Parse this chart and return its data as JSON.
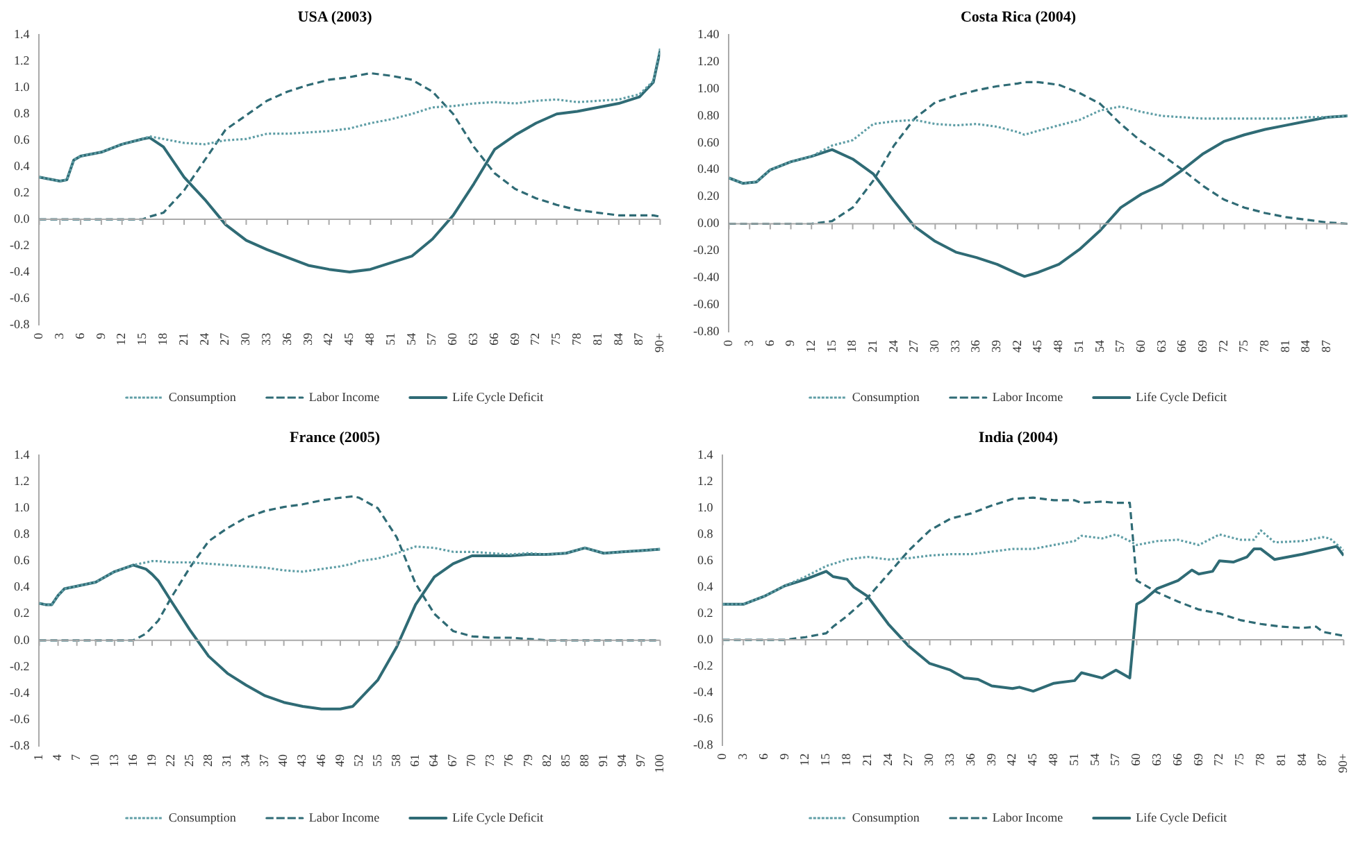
{
  "chart_data": [
    {
      "type": "line",
      "title": "USA (2003)",
      "legend": "bottom",
      "x": [
        0,
        3,
        4,
        5,
        6,
        9,
        12,
        15,
        16,
        18,
        21,
        24,
        27,
        30,
        33,
        36,
        39,
        42,
        45,
        48,
        51,
        54,
        57,
        60,
        63,
        66,
        69,
        72,
        75,
        78,
        81,
        84,
        87,
        89,
        90
      ],
      "xlim": [
        0,
        90
      ],
      "xticks": [
        0,
        3,
        6,
        9,
        12,
        15,
        18,
        21,
        24,
        27,
        30,
        33,
        36,
        39,
        42,
        45,
        48,
        51,
        54,
        57,
        60,
        63,
        66,
        69,
        72,
        75,
        78,
        81,
        84,
        87,
        {
          "value": 90,
          "label": "90+"
        }
      ],
      "ylim": [
        -0.8,
        1.4
      ],
      "yticks": [
        -0.8,
        -0.6,
        -0.4,
        -0.2,
        {
          "value": 0,
          "label": "0.0"
        },
        0.2,
        0.4,
        0.6,
        0.8,
        {
          "value": 1,
          "label": "1.0"
        },
        1.2,
        1.4
      ],
      "series": [
        {
          "name": "Consumption",
          "color": "#5f9ea6",
          "line_style": "dotted",
          "values": [
            0.32,
            0.29,
            0.3,
            0.45,
            0.48,
            0.51,
            0.57,
            0.61,
            0.63,
            0.61,
            0.58,
            0.57,
            0.6,
            0.61,
            0.65,
            0.65,
            0.66,
            0.67,
            0.69,
            0.73,
            0.76,
            0.8,
            0.85,
            0.86,
            0.88,
            0.89,
            0.88,
            0.9,
            0.91,
            0.89,
            0.9,
            0.91,
            0.95,
            1.05,
            1.3
          ]
        },
        {
          "name": "Labor Income",
          "color": "#2f6b75",
          "line_style": "dashed",
          "values": [
            0,
            0,
            0,
            0,
            0,
            0,
            0,
            0,
            0.02,
            0.05,
            0.22,
            0.45,
            0.68,
            0.79,
            0.9,
            0.97,
            1.02,
            1.06,
            1.08,
            1.11,
            1.09,
            1.06,
            0.97,
            0.8,
            0.55,
            0.35,
            0.23,
            0.16,
            0.11,
            0.07,
            0.05,
            0.03,
            0.03,
            0.03,
            0.02
          ]
        },
        {
          "name": "Life Cycle Deficit",
          "color": "#2f6b75",
          "line_style": "solid",
          "values": [
            0.32,
            0.29,
            0.3,
            0.45,
            0.48,
            0.51,
            0.57,
            0.61,
            0.62,
            0.55,
            0.32,
            0.15,
            -0.04,
            -0.16,
            -0.23,
            -0.29,
            -0.35,
            -0.38,
            -0.4,
            -0.38,
            -0.33,
            -0.28,
            -0.15,
            0.03,
            0.27,
            0.53,
            0.64,
            0.73,
            0.8,
            0.82,
            0.85,
            0.88,
            0.93,
            1.04,
            1.28
          ]
        }
      ]
    },
    {
      "type": "line",
      "title": "Costa Rica (2004)",
      "legend": "bottom",
      "x": [
        0,
        2,
        4,
        6,
        9,
        12,
        15,
        18,
        21,
        24,
        27,
        30,
        33,
        36,
        39,
        42,
        43,
        45,
        48,
        51,
        54,
        57,
        60,
        63,
        66,
        69,
        72,
        75,
        78,
        81,
        84,
        87,
        90
      ],
      "xlim": [
        0,
        90
      ],
      "xticks": [
        0,
        3,
        6,
        9,
        12,
        15,
        18,
        21,
        24,
        27,
        30,
        33,
        36,
        39,
        42,
        45,
        48,
        51,
        54,
        57,
        60,
        63,
        66,
        69,
        72,
        75,
        78,
        81,
        84,
        87
      ],
      "ylim": [
        -0.8,
        1.4
      ],
      "yticks": [
        {
          "value": -0.8,
          "label": "-0.80"
        },
        {
          "value": -0.6,
          "label": "-0.60"
        },
        {
          "value": -0.4,
          "label": "-0.40"
        },
        {
          "value": -0.2,
          "label": "-0.20"
        },
        {
          "value": 0,
          "label": "0.00"
        },
        {
          "value": 0.2,
          "label": "0.20"
        },
        {
          "value": 0.4,
          "label": "0.40"
        },
        {
          "value": 0.6,
          "label": "0.60"
        },
        {
          "value": 0.8,
          "label": "0.80"
        },
        {
          "value": 1,
          "label": "1.00"
        },
        {
          "value": 1.2,
          "label": "1.20"
        },
        {
          "value": 1.4,
          "label": "1.40"
        }
      ],
      "series": [
        {
          "name": "Consumption",
          "color": "#5f9ea6",
          "line_style": "dotted",
          "values": [
            0.34,
            0.3,
            0.31,
            0.4,
            0.46,
            0.5,
            0.58,
            0.62,
            0.74,
            0.76,
            0.77,
            0.74,
            0.73,
            0.74,
            0.72,
            0.68,
            0.66,
            0.69,
            0.73,
            0.77,
            0.84,
            0.87,
            0.83,
            0.8,
            0.79,
            0.78,
            0.78,
            0.78,
            0.78,
            0.78,
            0.79,
            0.79,
            0.8
          ]
        },
        {
          "name": "Labor Income",
          "color": "#2f6b75",
          "line_style": "dashed",
          "values": [
            0,
            0,
            0,
            0,
            0,
            0,
            0.02,
            0.12,
            0.32,
            0.58,
            0.78,
            0.9,
            0.95,
            0.99,
            1.02,
            1.04,
            1.05,
            1.05,
            1.03,
            0.97,
            0.89,
            0.74,
            0.61,
            0.51,
            0.4,
            0.28,
            0.18,
            0.12,
            0.08,
            0.05,
            0.03,
            0.01,
            0
          ]
        },
        {
          "name": "Life Cycle Deficit",
          "color": "#2f6b75",
          "line_style": "solid",
          "values": [
            0.34,
            0.3,
            0.31,
            0.4,
            0.46,
            0.5,
            0.55,
            0.48,
            0.37,
            0.17,
            -0.02,
            -0.13,
            -0.21,
            -0.25,
            -0.3,
            -0.37,
            -0.39,
            -0.36,
            -0.3,
            -0.19,
            -0.05,
            0.12,
            0.22,
            0.29,
            0.4,
            0.52,
            0.61,
            0.66,
            0.7,
            0.73,
            0.76,
            0.79,
            0.8
          ]
        }
      ]
    },
    {
      "type": "line",
      "title": "France (2005)",
      "legend": "bottom",
      "x": [
        1,
        2,
        3,
        4,
        5,
        7,
        10,
        13,
        16,
        18,
        19,
        20,
        22,
        25,
        28,
        31,
        34,
        37,
        40,
        43,
        46,
        49,
        51,
        52,
        55,
        58,
        61,
        64,
        67,
        70,
        73,
        76,
        79,
        82,
        85,
        88,
        91,
        94,
        97,
        100
      ],
      "xlim": [
        1,
        100
      ],
      "xticks": [
        1,
        4,
        7,
        10,
        13,
        16,
        19,
        22,
        25,
        28,
        31,
        34,
        37,
        40,
        43,
        46,
        49,
        52,
        55,
        58,
        61,
        64,
        67,
        70,
        73,
        76,
        79,
        82,
        85,
        88,
        91,
        94,
        97,
        100
      ],
      "ylim": [
        -0.8,
        1.4
      ],
      "yticks": [
        -0.8,
        -0.6,
        -0.4,
        -0.2,
        {
          "value": 0,
          "label": "0.0"
        },
        0.2,
        0.4,
        0.6,
        0.8,
        {
          "value": 1,
          "label": "1.0"
        },
        1.2,
        1.4
      ],
      "series": [
        {
          "name": "Consumption",
          "color": "#5f9ea6",
          "line_style": "dotted",
          "values": [
            0.28,
            0.27,
            0.27,
            0.34,
            0.39,
            0.41,
            0.44,
            0.52,
            0.57,
            0.59,
            0.6,
            0.6,
            0.59,
            0.59,
            0.58,
            0.57,
            0.56,
            0.55,
            0.53,
            0.52,
            0.54,
            0.56,
            0.58,
            0.6,
            0.62,
            0.66,
            0.71,
            0.7,
            0.67,
            0.67,
            0.66,
            0.65,
            0.66,
            0.65,
            0.66,
            0.7,
            0.66,
            0.67,
            0.68,
            0.69
          ]
        },
        {
          "name": "Labor Income",
          "color": "#2f6b75",
          "line_style": "dashed",
          "values": [
            0,
            0,
            0,
            0,
            0,
            0,
            0,
            0,
            0,
            0.05,
            0.1,
            0.15,
            0.32,
            0.55,
            0.75,
            0.85,
            0.93,
            0.98,
            1.01,
            1.03,
            1.06,
            1.08,
            1.09,
            1.08,
            1.0,
            0.78,
            0.43,
            0.2,
            0.07,
            0.03,
            0.02,
            0.02,
            0.01,
            0,
            0,
            0,
            0,
            0,
            0,
            0
          ]
        },
        {
          "name": "Life Cycle Deficit",
          "color": "#2f6b75",
          "line_style": "solid",
          "values": [
            0.28,
            0.27,
            0.27,
            0.34,
            0.39,
            0.41,
            0.44,
            0.52,
            0.57,
            0.54,
            0.5,
            0.45,
            0.3,
            0.08,
            -0.12,
            -0.25,
            -0.34,
            -0.42,
            -0.47,
            -0.5,
            -0.52,
            -0.52,
            -0.5,
            -0.45,
            -0.3,
            -0.05,
            0.27,
            0.48,
            0.58,
            0.64,
            0.64,
            0.64,
            0.65,
            0.65,
            0.66,
            0.7,
            0.66,
            0.67,
            0.68,
            0.69
          ]
        }
      ]
    },
    {
      "type": "line",
      "title": "India (2004)",
      "legend": "bottom",
      "xlim": [
        0,
        90
      ],
      "xticks": [
        0,
        3,
        6,
        9,
        12,
        15,
        18,
        21,
        24,
        27,
        30,
        33,
        36,
        39,
        42,
        45,
        48,
        51,
        54,
        57,
        60,
        63,
        66,
        69,
        72,
        75,
        78,
        81,
        84,
        87,
        {
          "value": 90,
          "label": "90+"
        }
      ],
      "ylim": [
        -0.8,
        1.4
      ],
      "yticks": [
        -0.8,
        -0.6,
        -0.4,
        -0.2,
        {
          "value": 0,
          "label": "0.0"
        },
        0.2,
        0.4,
        0.6,
        0.8,
        {
          "value": 1,
          "label": "1.0"
        },
        1.2,
        1.4
      ],
      "series": [
        {
          "name": "Consumption",
          "color": "#5f9ea6",
          "line_style": "dotted",
          "x": [
            0,
            3,
            6,
            9,
            12,
            15,
            18,
            21,
            24,
            27,
            30,
            33,
            36,
            39,
            42,
            45,
            48,
            51,
            52,
            55,
            57,
            59,
            60,
            63,
            66,
            69,
            72,
            75,
            77,
            78,
            80,
            84,
            87,
            88,
            90
          ],
          "values": [
            0.27,
            0.27,
            0.33,
            0.41,
            0.48,
            0.56,
            0.61,
            0.63,
            0.61,
            0.62,
            0.64,
            0.65,
            0.65,
            0.67,
            0.69,
            0.69,
            0.72,
            0.75,
            0.79,
            0.77,
            0.8,
            0.75,
            0.72,
            0.75,
            0.76,
            0.72,
            0.8,
            0.76,
            0.76,
            0.83,
            0.74,
            0.75,
            0.78,
            0.77,
            0.68
          ]
        },
        {
          "name": "Labor Income",
          "color": "#2f6b75",
          "line_style": "dashed",
          "x": [
            0,
            9,
            12,
            15,
            16,
            18,
            21,
            24,
            27,
            30,
            33,
            36,
            39,
            42,
            45,
            48,
            51,
            52,
            55,
            57,
            59,
            60,
            63,
            66,
            69,
            72,
            75,
            78,
            81,
            84,
            86,
            87,
            90
          ],
          "values": [
            0,
            0,
            0.02,
            0.05,
            0.1,
            0.18,
            0.32,
            0.5,
            0.68,
            0.83,
            0.92,
            0.96,
            1.02,
            1.07,
            1.08,
            1.06,
            1.06,
            1.04,
            1.05,
            1.04,
            1.04,
            0.45,
            0.36,
            0.29,
            0.23,
            0.2,
            0.15,
            0.12,
            0.1,
            0.09,
            0.1,
            0.06,
            0.03
          ]
        },
        {
          "name": "Life Cycle Deficit",
          "color": "#2f6b75",
          "line_style": "solid",
          "x": [
            0,
            3,
            6,
            9,
            12,
            15,
            16,
            18,
            19,
            21,
            24,
            27,
            30,
            33,
            35,
            37,
            39,
            42,
            43,
            45,
            48,
            51,
            52,
            55,
            57,
            59,
            60,
            61,
            63,
            66,
            68,
            69,
            71,
            72,
            74,
            76,
            77,
            78,
            80,
            84,
            89,
            90
          ],
          "values": [
            0.27,
            0.27,
            0.33,
            0.41,
            0.46,
            0.52,
            0.48,
            0.46,
            0.4,
            0.33,
            0.12,
            -0.05,
            -0.18,
            -0.23,
            -0.29,
            -0.3,
            -0.35,
            -0.37,
            -0.36,
            -0.39,
            -0.33,
            -0.31,
            -0.25,
            -0.29,
            -0.23,
            -0.29,
            0.27,
            0.3,
            0.39,
            0.45,
            0.53,
            0.5,
            0.52,
            0.6,
            0.59,
            0.63,
            0.69,
            0.69,
            0.61,
            0.65,
            0.71,
            0.64
          ]
        }
      ]
    }
  ]
}
